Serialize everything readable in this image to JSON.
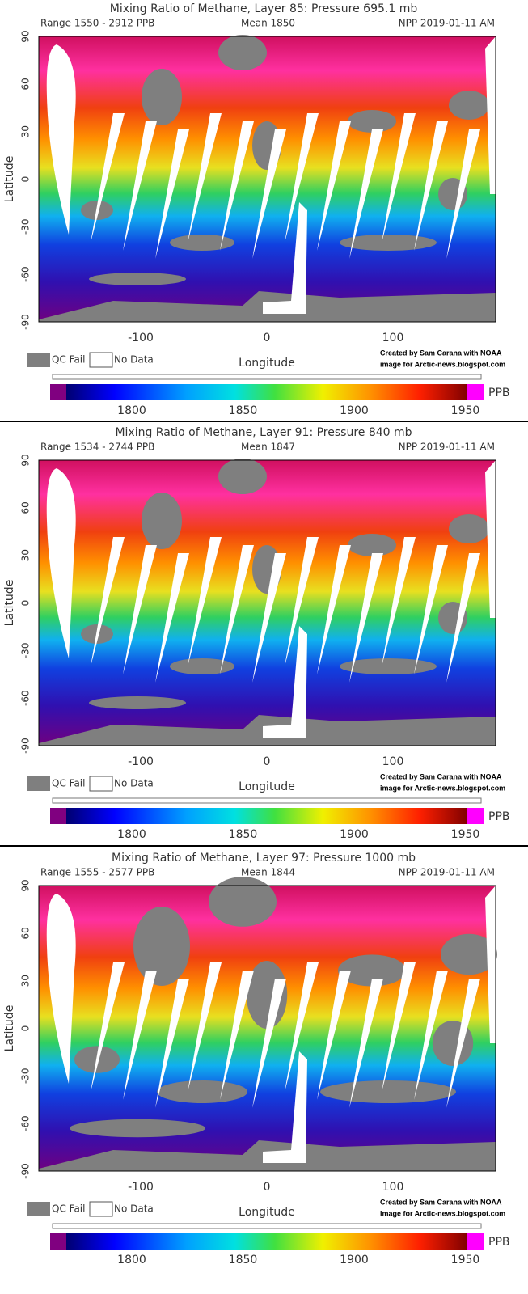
{
  "panels": [
    {
      "title": "Mixing Ratio of Methane, Layer 85: Pressure 695.1 mb",
      "range": "Range 1550 - 2912 PPB",
      "mean": "Mean 1850",
      "source": "NPP 2019-01-11 AM",
      "y_axis_label": "Latitude",
      "x_axis_label": "Longitude",
      "lat_ticks": [
        90,
        60,
        30,
        0,
        -30,
        -60,
        -90
      ],
      "lon_ticks": [
        -100,
        0,
        100
      ],
      "legend": [
        "QC Fail",
        "No Data"
      ],
      "credit": [
        "Created by Sam Carana with NOAA",
        "image for Arctic-news.blogspot.com"
      ],
      "colorbar_ticks": [
        1800,
        1850,
        1900,
        1950
      ],
      "colorbar_unit": "PPB"
    },
    {
      "title": "Mixing Ratio of Methane, Layer 91: Pressure 840 mb",
      "range": "Range 1534 - 2744 PPB",
      "mean": "Mean 1847",
      "source": "NPP 2019-01-11 AM",
      "y_axis_label": "Latitude",
      "x_axis_label": "Longitude",
      "lat_ticks": [
        90,
        60,
        30,
        0,
        -30,
        -60,
        -90
      ],
      "lon_ticks": [
        -100,
        0,
        100
      ],
      "legend": [
        "QC Fail",
        "No Data"
      ],
      "credit": [
        "Created by Sam Carana with NOAA",
        "image for Arctic-news.blogspot.com"
      ],
      "colorbar_ticks": [
        1800,
        1850,
        1900,
        1950
      ],
      "colorbar_unit": "PPB"
    },
    {
      "title": "Mixing Ratio of Methane, Layer 97: Pressure 1000 mb",
      "range": "Range 1555 - 2577 PPB",
      "mean": "Mean 1844",
      "source": "NPP 2019-01-11 AM",
      "y_axis_label": "Latitude",
      "x_axis_label": "Longitude",
      "lat_ticks": [
        90,
        60,
        30,
        0,
        -30,
        -60,
        -90
      ],
      "lon_ticks": [
        -100,
        0,
        100
      ],
      "legend": [
        "QC Fail",
        "No Data"
      ],
      "credit": [
        "Created by Sam Carana with NOAA",
        "image for Arctic-news.blogspot.com"
      ],
      "colorbar_ticks": [
        1800,
        1850,
        1900,
        1950
      ],
      "colorbar_unit": "PPB"
    }
  ]
}
